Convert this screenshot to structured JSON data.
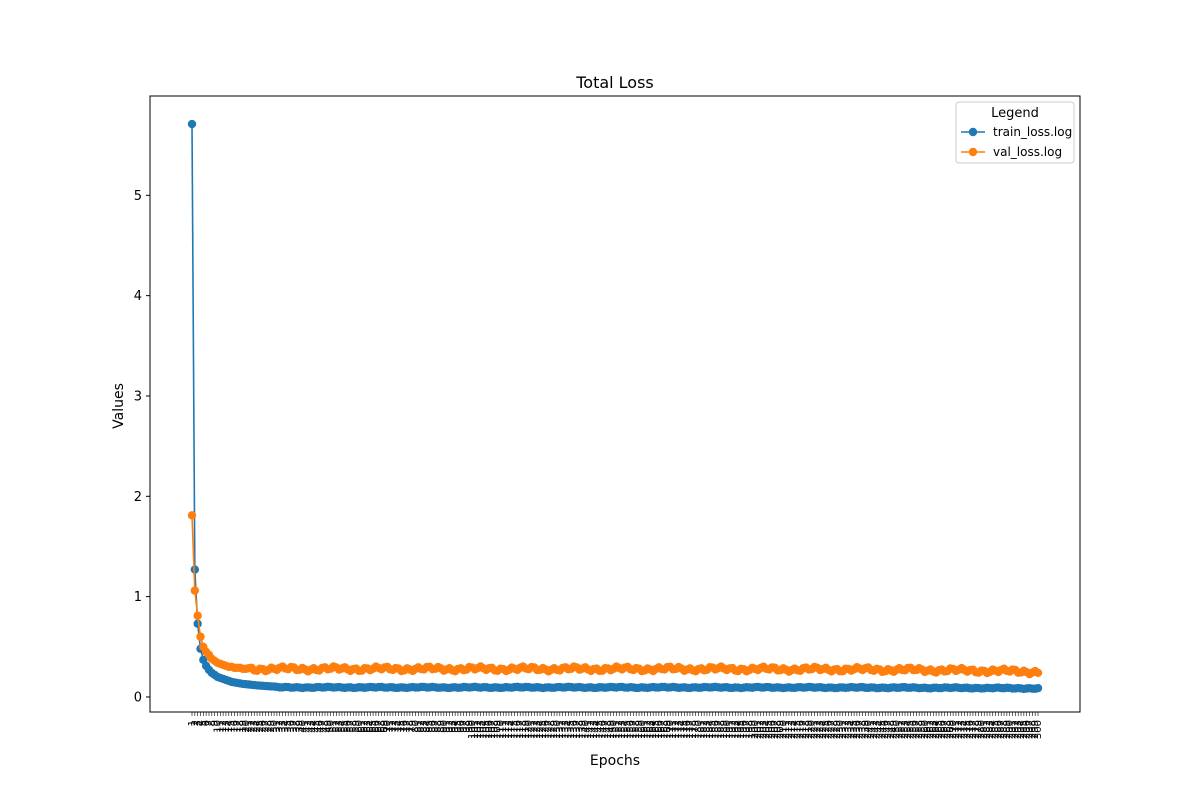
{
  "chart_data": {
    "type": "line",
    "title": "Total Loss",
    "xlabel": "Epochs",
    "ylabel": "Values",
    "ylim": [
      -0.15,
      5.99
    ],
    "yticks": [
      0,
      1,
      2,
      3,
      4,
      5
    ],
    "x_start": 1,
    "x_end": 300,
    "grid": false,
    "legend": {
      "title": "Legend",
      "placement": "upper right"
    },
    "series": [
      {
        "name": "train_loss.log",
        "color": "#1f77b4",
        "marker": "circle",
        "values_head": [
          5.71,
          1.27,
          0.73,
          0.48,
          0.37,
          0.31,
          0.27,
          0.24,
          0.22,
          0.2,
          0.19,
          0.18,
          0.17,
          0.16,
          0.15,
          0.145,
          0.14,
          0.135,
          0.13,
          0.127,
          0.124,
          0.121,
          0.118,
          0.115,
          0.113,
          0.111,
          0.109,
          0.107,
          0.105,
          0.104
        ],
        "tail_level": 0.095,
        "tail_end": 0.085
      },
      {
        "name": "val_loss.log",
        "color": "#ff7f0e",
        "marker": "circle",
        "values_head": [
          1.81,
          1.06,
          0.81,
          0.6,
          0.5,
          0.45,
          0.42,
          0.38,
          0.36,
          0.34,
          0.33,
          0.32,
          0.31,
          0.3,
          0.3,
          0.29,
          0.29,
          0.29,
          0.28,
          0.28
        ],
        "tail_level": 0.28,
        "tail_end": 0.25
      }
    ]
  }
}
